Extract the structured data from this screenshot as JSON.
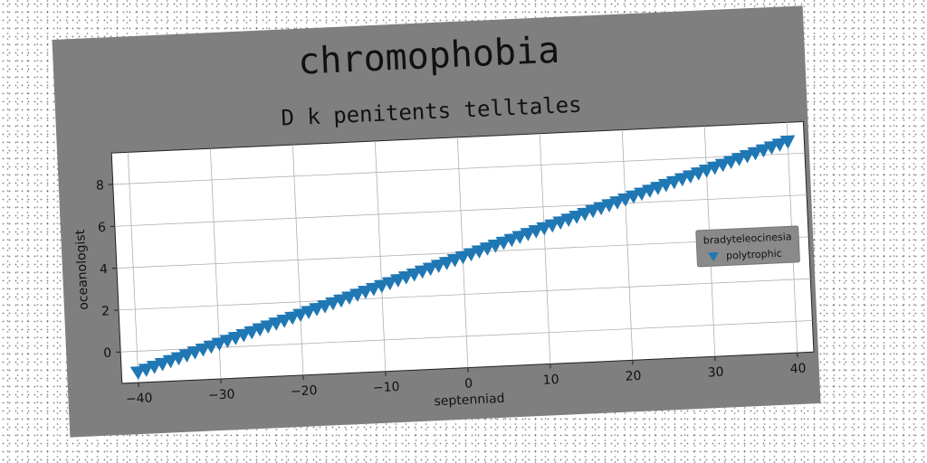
{
  "chart_data": {
    "type": "scatter",
    "title": "chromophobia",
    "subtitle": "D k penitents telltales",
    "xlabel": "septenniad",
    "ylabel": "oceanologist",
    "xlim": [
      -42,
      42
    ],
    "ylim": [
      -1.5,
      9.5
    ],
    "xticks": [
      -40,
      -30,
      -20,
      -10,
      0,
      10,
      20,
      30,
      40
    ],
    "yticks": [
      0,
      2,
      4,
      6,
      8
    ],
    "xtick_labels": [
      "−40",
      "−30",
      "−20",
      "−10",
      "0",
      "10",
      "20",
      "30",
      "40"
    ],
    "ytick_labels": [
      "0",
      "2",
      "4",
      "6",
      "8"
    ],
    "grid": true,
    "legend": {
      "title": "bradyteleocinesia",
      "placement": "right"
    },
    "series": [
      {
        "name": "polytrophic",
        "marker": "triangle-down",
        "color": "#1f77b4",
        "x": [
          -40,
          -39,
          -38,
          -37,
          -36,
          -35,
          -34,
          -33,
          -32,
          -31,
          -30,
          -29,
          -28,
          -27,
          -26,
          -25,
          -24,
          -23,
          -22,
          -21,
          -20,
          -19,
          -18,
          -17,
          -16,
          -15,
          -14,
          -13,
          -12,
          -11,
          -10,
          -9,
          -8,
          -7,
          -6,
          -5,
          -4,
          -3,
          -2,
          -1,
          0,
          1,
          2,
          3,
          4,
          5,
          6,
          7,
          8,
          9,
          10,
          11,
          12,
          13,
          14,
          15,
          16,
          17,
          18,
          19,
          20,
          21,
          22,
          23,
          24,
          25,
          26,
          27,
          28,
          29,
          30,
          31,
          32,
          33,
          34,
          35,
          36,
          37,
          38,
          39,
          40
        ],
        "y": [
          -1.0,
          -0.88,
          -0.76,
          -0.64,
          -0.52,
          -0.4,
          -0.28,
          -0.16,
          -0.04,
          0.08,
          0.2,
          0.32,
          0.44,
          0.56,
          0.68,
          0.8,
          0.92,
          1.04,
          1.16,
          1.28,
          1.4,
          1.52,
          1.64,
          1.76,
          1.88,
          2.0,
          2.12,
          2.24,
          2.36,
          2.48,
          2.6,
          2.72,
          2.84,
          2.96,
          3.08,
          3.2,
          3.32,
          3.44,
          3.56,
          3.68,
          3.8,
          3.92,
          4.04,
          4.16,
          4.28,
          4.4,
          4.52,
          4.64,
          4.76,
          4.88,
          5.0,
          5.12,
          5.24,
          5.36,
          5.48,
          5.6,
          5.72,
          5.84,
          5.96,
          6.08,
          6.2,
          6.32,
          6.44,
          6.56,
          6.68,
          6.8,
          6.92,
          7.04,
          7.16,
          7.28,
          7.4,
          7.52,
          7.64,
          7.76,
          7.88,
          8.0,
          8.12,
          8.24,
          8.36,
          8.48,
          8.6
        ]
      }
    ]
  }
}
